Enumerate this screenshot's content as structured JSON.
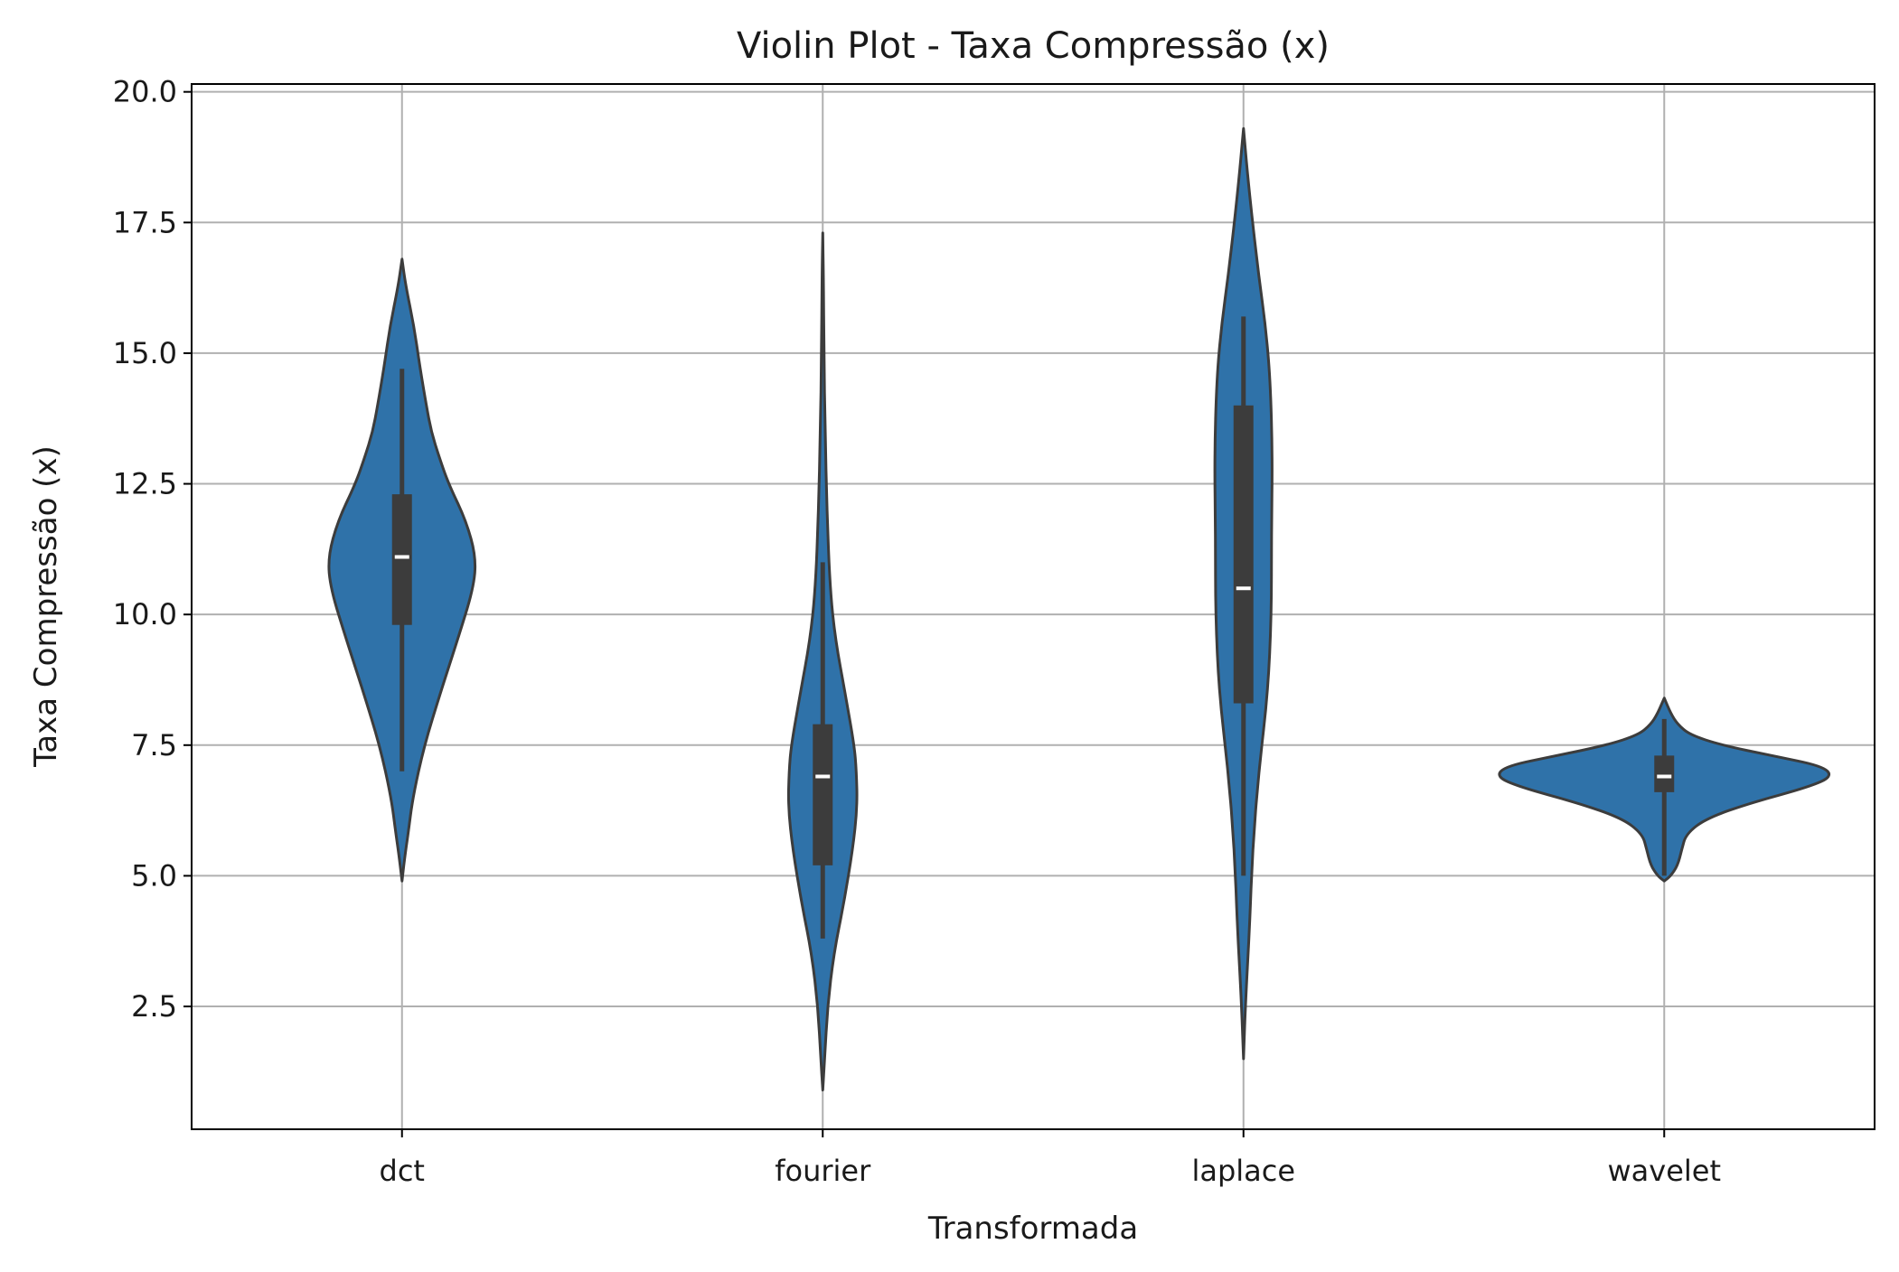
{
  "chart_data": {
    "type": "violin",
    "title": "Violin Plot - Taxa Compressão (x)",
    "xlabel": "Transformada",
    "ylabel": "Taxa Compressão (x)",
    "ylim": [
      0.15,
      20.15
    ],
    "yticks": [
      2.5,
      5.0,
      7.5,
      10.0,
      12.5,
      15.0,
      17.5,
      20.0
    ],
    "ytick_labels": [
      "2.5",
      "5.0",
      "7.5",
      "10.0",
      "12.5",
      "15.0",
      "17.5",
      "20.0"
    ],
    "grid": true,
    "categories": [
      "dct",
      "fourier",
      "laplace",
      "wavelet"
    ],
    "violins": [
      {
        "category": "dct",
        "min": 4.9,
        "max": 16.8,
        "whisker_low": 7.0,
        "whisker_high": 14.7,
        "q1": 9.8,
        "median": 11.1,
        "q3": 12.3,
        "density": [
          [
            4.9,
            0.0
          ],
          [
            5.3,
            0.014
          ],
          [
            5.8,
            0.036
          ],
          [
            6.5,
            0.064
          ],
          [
            7.5,
            0.133
          ],
          [
            8.5,
            0.228
          ],
          [
            9.5,
            0.329
          ],
          [
            10.5,
            0.425
          ],
          [
            11.1,
            0.44
          ],
          [
            11.8,
            0.38
          ],
          [
            12.5,
            0.277
          ],
          [
            13.0,
            0.222
          ],
          [
            13.5,
            0.174
          ],
          [
            14.0,
            0.145
          ],
          [
            14.7,
            0.108
          ],
          [
            15.5,
            0.072
          ],
          [
            16.3,
            0.022
          ],
          [
            16.8,
            0.0
          ]
        ]
      },
      {
        "category": "fourier",
        "min": 0.9,
        "max": 17.3,
        "whisker_low": 3.8,
        "whisker_high": 11.0,
        "q1": 5.2,
        "median": 6.9,
        "q3": 7.9,
        "density": [
          [
            0.9,
            0.0
          ],
          [
            1.5,
            0.011
          ],
          [
            2.5,
            0.029
          ],
          [
            3.5,
            0.065
          ],
          [
            4.5,
            0.127
          ],
          [
            5.5,
            0.178
          ],
          [
            6.3,
            0.205
          ],
          [
            7.0,
            0.2
          ],
          [
            7.5,
            0.187
          ],
          [
            8.5,
            0.133
          ],
          [
            9.5,
            0.076
          ],
          [
            10.5,
            0.043
          ],
          [
            12.0,
            0.025
          ],
          [
            13.5,
            0.014
          ],
          [
            15.0,
            0.007
          ],
          [
            16.5,
            0.004
          ],
          [
            17.3,
            0.0
          ]
        ]
      },
      {
        "category": "laplace",
        "min": 1.5,
        "max": 19.3,
        "whisker_low": 5.0,
        "whisker_high": 15.7,
        "q1": 8.3,
        "median": 10.5,
        "q3": 14.0,
        "density": [
          [
            1.5,
            0.0
          ],
          [
            2.5,
            0.011
          ],
          [
            4.0,
            0.036
          ],
          [
            5.5,
            0.054
          ],
          [
            7.0,
            0.091
          ],
          [
            8.5,
            0.145
          ],
          [
            10.0,
            0.166
          ],
          [
            11.5,
            0.166
          ],
          [
            13.0,
            0.172
          ],
          [
            14.5,
            0.159
          ],
          [
            15.5,
            0.132
          ],
          [
            16.5,
            0.09
          ],
          [
            17.5,
            0.054
          ],
          [
            18.5,
            0.022
          ],
          [
            19.3,
            0.0
          ]
        ]
      },
      {
        "category": "wavelet",
        "min": 4.9,
        "max": 8.4,
        "whisker_low": 5.0,
        "whisker_high": 8.0,
        "q1": 6.6,
        "median": 6.9,
        "q3": 7.3,
        "density": [
          [
            4.9,
            0.0
          ],
          [
            5.0,
            0.04
          ],
          [
            5.2,
            0.08
          ],
          [
            5.5,
            0.104
          ],
          [
            5.8,
            0.13
          ],
          [
            6.1,
            0.25
          ],
          [
            6.4,
            0.52
          ],
          [
            6.7,
            0.86
          ],
          [
            6.9,
            1.0
          ],
          [
            7.1,
            0.94
          ],
          [
            7.3,
            0.64
          ],
          [
            7.5,
            0.34
          ],
          [
            7.7,
            0.15
          ],
          [
            7.9,
            0.08
          ],
          [
            8.1,
            0.04
          ],
          [
            8.4,
            0.0
          ]
        ]
      }
    ]
  }
}
